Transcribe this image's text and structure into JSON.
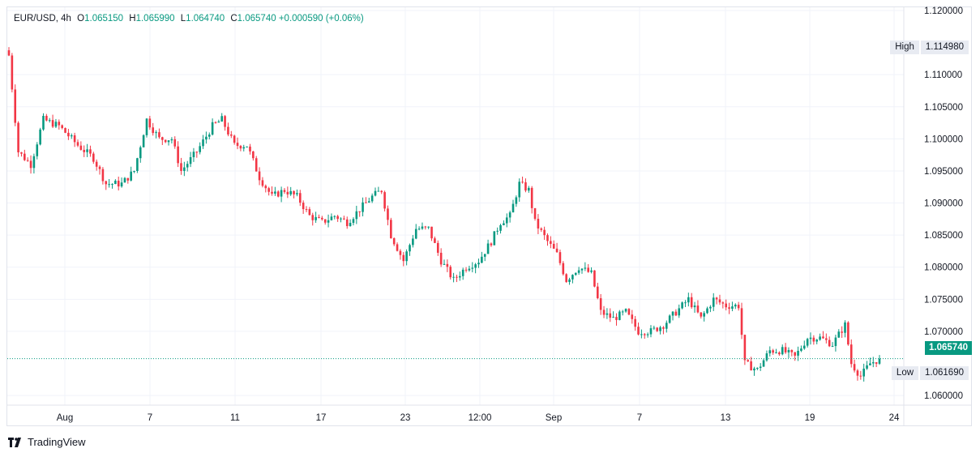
{
  "legend": {
    "symbol": "EUR/USD",
    "interval": "4h",
    "open_label": "O",
    "open": "1.065150",
    "high_label": "H",
    "high": "1.065990",
    "low_label": "L",
    "low": "1.064740",
    "close_label": "C",
    "close": "1.065740",
    "change": "+0.000590 (+0.06%)"
  },
  "badges": {
    "high_label": "High",
    "high_value": "1.114980",
    "low_label": "Low",
    "low_value": "1.061690",
    "last_value": "1.065740"
  },
  "brand": "TradingView",
  "colors": {
    "up": "#089981",
    "down": "#f23645",
    "grid": "#f0f3fa",
    "last_line": "#089981"
  },
  "chart_data": {
    "type": "candlestick",
    "y_ticks": [
      "1.120000",
      "1.110000",
      "1.105000",
      "1.100000",
      "1.095000",
      "1.090000",
      "1.085000",
      "1.080000",
      "1.075000",
      "1.070000",
      "1.060000"
    ],
    "ylim": [
      1.0585,
      1.1205
    ],
    "x_ticks": [
      "Aug",
      "7",
      "11",
      "17",
      "23",
      "12:00",
      "Sep",
      "7",
      "13",
      "19",
      "24"
    ],
    "last_price": 1.06574,
    "visible_high": 1.11498,
    "visible_low": 1.06169,
    "close_path": [
      {
        "i": 0,
        "c": 1.113
      },
      {
        "i": 3,
        "c": 1.098
      },
      {
        "i": 7,
        "c": 1.096
      },
      {
        "i": 11,
        "c": 1.103
      },
      {
        "i": 16,
        "c": 1.102
      },
      {
        "i": 22,
        "c": 1.099
      },
      {
        "i": 27,
        "c": 1.097
      },
      {
        "i": 31,
        "c": 1.093
      },
      {
        "i": 36,
        "c": 1.093
      },
      {
        "i": 40,
        "c": 1.095
      },
      {
        "i": 44,
        "c": 1.103
      },
      {
        "i": 48,
        "c": 1.1
      },
      {
        "i": 52,
        "c": 1.1
      },
      {
        "i": 55,
        "c": 1.095
      },
      {
        "i": 60,
        "c": 1.098
      },
      {
        "i": 65,
        "c": 1.102
      },
      {
        "i": 68,
        "c": 1.103
      },
      {
        "i": 72,
        "c": 1.099
      },
      {
        "i": 76,
        "c": 1.099
      },
      {
        "i": 80,
        "c": 1.094
      },
      {
        "i": 84,
        "c": 1.091
      },
      {
        "i": 88,
        "c": 1.092
      },
      {
        "i": 92,
        "c": 1.091
      },
      {
        "i": 96,
        "c": 1.088
      },
      {
        "i": 100,
        "c": 1.087
      },
      {
        "i": 104,
        "c": 1.088
      },
      {
        "i": 108,
        "c": 1.087
      },
      {
        "i": 112,
        "c": 1.089
      },
      {
        "i": 116,
        "c": 1.091
      },
      {
        "i": 119,
        "c": 1.092
      },
      {
        "i": 122,
        "c": 1.085
      },
      {
        "i": 126,
        "c": 1.081
      },
      {
        "i": 130,
        "c": 1.086
      },
      {
        "i": 134,
        "c": 1.086
      },
      {
        "i": 138,
        "c": 1.081
      },
      {
        "i": 142,
        "c": 1.078
      },
      {
        "i": 146,
        "c": 1.08
      },
      {
        "i": 150,
        "c": 1.081
      },
      {
        "i": 154,
        "c": 1.084
      },
      {
        "i": 157,
        "c": 1.087
      },
      {
        "i": 160,
        "c": 1.088
      },
      {
        "i": 163,
        "c": 1.093
      },
      {
        "i": 166,
        "c": 1.092
      },
      {
        "i": 168,
        "c": 1.087
      },
      {
        "i": 172,
        "c": 1.084
      },
      {
        "i": 175,
        "c": 1.082
      },
      {
        "i": 178,
        "c": 1.078
      },
      {
        "i": 182,
        "c": 1.08
      },
      {
        "i": 186,
        "c": 1.079
      },
      {
        "i": 189,
        "c": 1.073
      },
      {
        "i": 193,
        "c": 1.072
      },
      {
        "i": 197,
        "c": 1.073
      },
      {
        "i": 201,
        "c": 1.07
      },
      {
        "i": 205,
        "c": 1.07
      },
      {
        "i": 209,
        "c": 1.071
      },
      {
        "i": 213,
        "c": 1.073
      },
      {
        "i": 217,
        "c": 1.075
      },
      {
        "i": 221,
        "c": 1.072
      },
      {
        "i": 225,
        "c": 1.075
      },
      {
        "i": 229,
        "c": 1.074
      },
      {
        "i": 233,
        "c": 1.074
      },
      {
        "i": 235,
        "c": 1.065
      },
      {
        "i": 239,
        "c": 1.064
      },
      {
        "i": 243,
        "c": 1.067
      },
      {
        "i": 247,
        "c": 1.067
      },
      {
        "i": 251,
        "c": 1.066
      },
      {
        "i": 255,
        "c": 1.069
      },
      {
        "i": 259,
        "c": 1.069
      },
      {
        "i": 263,
        "c": 1.068
      },
      {
        "i": 267,
        "c": 1.071
      },
      {
        "i": 269,
        "c": 1.065
      },
      {
        "i": 272,
        "c": 1.063
      },
      {
        "i": 275,
        "c": 1.065
      },
      {
        "i": 278,
        "c": 1.0657
      }
    ]
  }
}
